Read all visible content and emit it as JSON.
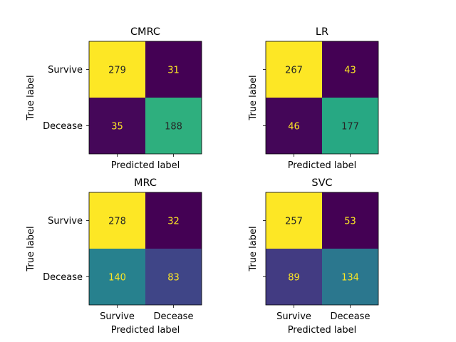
{
  "chart_data": [
    {
      "type": "heatmap",
      "title": "CMRC",
      "xlabel": "Predicted label",
      "ylabel": "True label",
      "x_categories": [
        "Survive",
        "Decease"
      ],
      "y_categories": [
        "Survive",
        "Decease"
      ],
      "show_x_ticklabels": false,
      "show_y_ticklabels": true,
      "matrix": [
        [
          279,
          31
        ],
        [
          35,
          188
        ]
      ]
    },
    {
      "type": "heatmap",
      "title": "LR",
      "xlabel": "Predicted label",
      "ylabel": "True label",
      "x_categories": [
        "Survive",
        "Decease"
      ],
      "y_categories": [
        "Survive",
        "Decease"
      ],
      "show_x_ticklabels": false,
      "show_y_ticklabels": false,
      "matrix": [
        [
          267,
          43
        ],
        [
          46,
          177
        ]
      ]
    },
    {
      "type": "heatmap",
      "title": "MRC",
      "xlabel": "Predicted label",
      "ylabel": "True label",
      "x_categories": [
        "Survive",
        "Decease"
      ],
      "y_categories": [
        "Survive",
        "Decease"
      ],
      "show_x_ticklabels": true,
      "show_y_ticklabels": true,
      "matrix": [
        [
          278,
          32
        ],
        [
          140,
          83
        ]
      ]
    },
    {
      "type": "heatmap",
      "title": "SVC",
      "xlabel": "Predicted label",
      "ylabel": "True label",
      "x_categories": [
        "Survive",
        "Decease"
      ],
      "y_categories": [
        "Survive",
        "Decease"
      ],
      "show_x_ticklabels": true,
      "show_y_ticklabels": false,
      "matrix": [
        [
          257,
          53
        ],
        [
          89,
          134
        ]
      ]
    }
  ],
  "colormap": "viridis",
  "text_colors": {
    "on_dark": "#fde725",
    "on_light": "#262626"
  }
}
